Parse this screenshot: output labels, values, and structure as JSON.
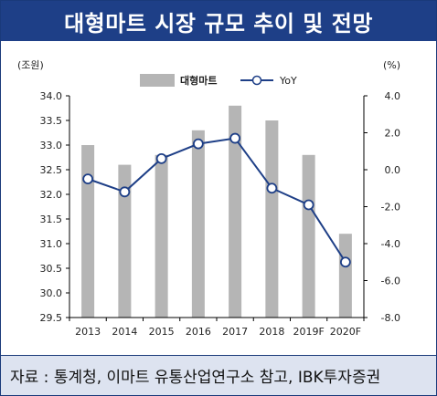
{
  "title": "대형마트 시장 규모 추이 및 전망",
  "source": "자료 : 통계청, 이마트 유통산업연구소 참고, IBK투자증권",
  "chart_data": {
    "type": "bar+line",
    "categories": [
      "2013",
      "2014",
      "2015",
      "2016",
      "2017",
      "2018",
      "2019F",
      "2020F"
    ],
    "series": [
      {
        "name": "대형마트",
        "type": "bar",
        "axis": "left",
        "color": "#b5b5b5",
        "values": [
          33.0,
          32.6,
          32.8,
          33.3,
          33.8,
          33.5,
          32.8,
          31.2
        ]
      },
      {
        "name": "YoY",
        "type": "line",
        "axis": "right",
        "color": "#1e3f87",
        "values": [
          -0.5,
          -1.2,
          0.6,
          1.4,
          1.7,
          -1.0,
          -1.9,
          -5.0
        ]
      }
    ],
    "left_axis": {
      "unit": "(조원)",
      "min": 29.5,
      "max": 34.0,
      "step": 0.5,
      "ticks": [
        "34.0",
        "33.5",
        "33.0",
        "32.5",
        "32.0",
        "31.5",
        "31.0",
        "30.5",
        "30.0",
        "29.5"
      ]
    },
    "right_axis": {
      "unit": "(%)",
      "min": -8.0,
      "max": 4.0,
      "step": 2.0,
      "ticks": [
        "4.0",
        "2.0",
        "0.0",
        "-2.0",
        "-4.0",
        "-6.0",
        "-8.0"
      ]
    },
    "legend_position": "top",
    "grid": false
  }
}
